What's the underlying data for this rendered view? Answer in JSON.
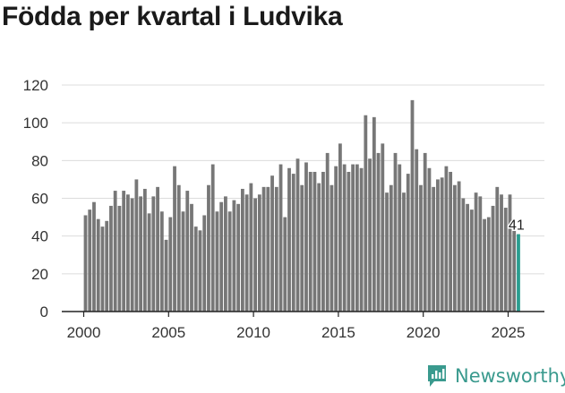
{
  "chart_data": {
    "type": "bar",
    "title": "Födda per kvartal i Ludvika",
    "xlabel": "",
    "ylabel": "",
    "ylim": [
      0,
      120
    ],
    "yticks": [
      0,
      20,
      40,
      60,
      80,
      100,
      120
    ],
    "xticks": [
      2000,
      2005,
      2010,
      2015,
      2020,
      2025
    ],
    "x_start_year": 2000,
    "grid": true,
    "bar_color": "#777777",
    "highlight_color": "#2a9d8f",
    "last_label": "41",
    "values": [
      51,
      54,
      58,
      49,
      45,
      48,
      56,
      64,
      56,
      64,
      62,
      60,
      70,
      61,
      65,
      52,
      61,
      66,
      53,
      38,
      50,
      77,
      67,
      53,
      64,
      57,
      45,
      43,
      51,
      67,
      78,
      53,
      58,
      61,
      53,
      59,
      57,
      65,
      62,
      68,
      60,
      62,
      66,
      66,
      72,
      66,
      78,
      50,
      76,
      73,
      81,
      67,
      79,
      74,
      74,
      68,
      74,
      84,
      67,
      77,
      89,
      78,
      74,
      78,
      78,
      76,
      104,
      81,
      103,
      84,
      89,
      63,
      67,
      84,
      78,
      63,
      73,
      112,
      86,
      67,
      84,
      76,
      66,
      70,
      71,
      77,
      74,
      67,
      69,
      60,
      57,
      54,
      63,
      61,
      49,
      50,
      56,
      66,
      62,
      55,
      62,
      46,
      41
    ]
  },
  "brand": {
    "name": "Newsworthy",
    "color": "#3a9a8e"
  }
}
